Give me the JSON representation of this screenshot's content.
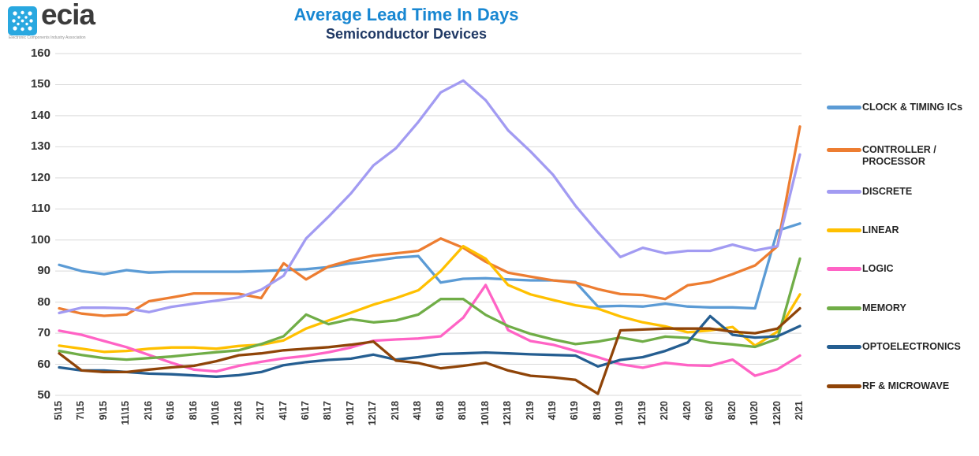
{
  "logo": {
    "brand": "ecia",
    "tagline": "Electronic Components Industry Association",
    "icon_color": "#29a8e0"
  },
  "header": {
    "title": "Average Lead Time In Days",
    "subtitle": "Semiconductor Devices",
    "title_color": "#1887d2",
    "subtitle_color": "#1f3864"
  },
  "chart_data": {
    "type": "line",
    "title": "Average Lead Time In Days",
    "subtitle": "Semiconductor Devices",
    "xlabel": "",
    "ylabel": "",
    "ylim": [
      50,
      160
    ],
    "yticks": [
      160,
      150,
      140,
      130,
      120,
      110,
      100,
      90,
      80,
      70,
      60,
      50
    ],
    "grid": true,
    "grid_color": "#d9d9d9",
    "legend_position": "right",
    "categories": [
      "5\\15",
      "7\\15",
      "9\\15",
      "11\\15",
      "2\\16",
      "6\\16",
      "8\\16",
      "10\\16",
      "12\\16",
      "2\\17",
      "4\\17",
      "6\\17",
      "8\\17",
      "10\\17",
      "12\\17",
      "2\\18",
      "4\\18",
      "6\\18",
      "8\\18",
      "10\\18",
      "12\\18",
      "2\\19",
      "4\\19",
      "6\\19",
      "8\\19",
      "10\\19",
      "12\\19",
      "2\\20",
      "4\\20",
      "6\\20",
      "8\\20",
      "10\\20",
      "12\\20",
      "2\\21"
    ],
    "series": [
      {
        "name": "CLOCK & TIMING ICs",
        "color": "#5b9bd5",
        "values": [
          92,
          90,
          89,
          90.3,
          89.5,
          89.8,
          89.8,
          89.8,
          89.8,
          90,
          90.3,
          90.6,
          91.3,
          92.5,
          93.3,
          94.3,
          94.8,
          86.3,
          87.5,
          87.7,
          87.3,
          87,
          87,
          86.5,
          78.6,
          78.8,
          78.6,
          79.5,
          78.6,
          78.3,
          78.3,
          78,
          103,
          105.3
        ]
      },
      {
        "name": "CONTROLLER / PROCESSOR",
        "color": "#ed7d31",
        "values": [
          78,
          76.3,
          75.6,
          76,
          80.3,
          81.5,
          82.8,
          82.8,
          82.7,
          81.3,
          92.5,
          87.3,
          91.5,
          93.5,
          95,
          95.7,
          96.5,
          100.5,
          97.5,
          93,
          89.5,
          88.2,
          87,
          86.3,
          84.2,
          82.6,
          82.3,
          81,
          85.4,
          86.5,
          89,
          91.8,
          98,
          136.5
        ]
      },
      {
        "name": "DISCRETE",
        "color": "#a29bf2",
        "values": [
          76.5,
          78.2,
          78.2,
          78,
          76.8,
          78.5,
          79.5,
          80.5,
          81.5,
          84,
          88.5,
          100.5,
          107.5,
          115,
          124,
          129.5,
          138,
          147.5,
          151.3,
          145,
          135.3,
          128.5,
          121,
          111,
          102.5,
          94.5,
          97.5,
          95.7,
          96.5,
          96.5,
          98.5,
          96.6,
          98,
          127.5
        ]
      },
      {
        "name": "LINEAR",
        "color": "#ffc000",
        "values": [
          66,
          65,
          64,
          64.3,
          65,
          65.4,
          65.4,
          65,
          65.9,
          66.3,
          67.7,
          71.5,
          74.1,
          76.6,
          79.2,
          81.3,
          83.8,
          90,
          98,
          94,
          85.5,
          82.5,
          80.7,
          79,
          77.9,
          75.4,
          73.5,
          72.2,
          70.3,
          70.9,
          72,
          66,
          70.5,
          82.5
        ]
      },
      {
        "name": "LOGIC",
        "color": "#ff63c5",
        "values": [
          70.8,
          69.5,
          67.5,
          65.5,
          63,
          60.5,
          58.3,
          57.7,
          59.5,
          60.8,
          61.9,
          62.7,
          63.9,
          65.4,
          67.6,
          68,
          68.3,
          69,
          75,
          85.5,
          71,
          67.5,
          66.3,
          64.3,
          62.3,
          60,
          58.9,
          60.5,
          59.7,
          59.5,
          61.5,
          56.3,
          58.4,
          62.8
        ]
      },
      {
        "name": "MEMORY",
        "color": "#70ad47",
        "values": [
          64.3,
          63,
          62,
          61.5,
          62,
          62.5,
          63.2,
          63.9,
          64.5,
          66.5,
          69,
          76,
          72.9,
          74.5,
          73.5,
          74.1,
          76,
          81,
          81,
          75.9,
          72.3,
          69.8,
          68,
          66.5,
          67.3,
          68.6,
          67.3,
          68.9,
          68.5,
          67,
          66.4,
          65.6,
          68.2,
          94
        ]
      },
      {
        "name": "OPTOELECTRONICS",
        "color": "#255e91",
        "values": [
          59,
          58,
          58,
          57.5,
          57,
          56.8,
          56.4,
          56,
          56.5,
          57.5,
          59.7,
          60.7,
          61.4,
          61.8,
          63.1,
          61.5,
          62.3,
          63.3,
          63.5,
          63.8,
          63.5,
          63.2,
          63,
          62.8,
          59.3,
          61.4,
          62.3,
          64.3,
          67,
          75.5,
          69.5,
          68.6,
          69,
          72.3
        ]
      },
      {
        "name": "RF & MICROWAVE",
        "color": "#8f4408",
        "values": [
          63.5,
          58,
          57.5,
          57.5,
          58.3,
          59,
          59.5,
          61,
          62.9,
          63.5,
          64.5,
          65,
          65.5,
          66.3,
          67.3,
          61.2,
          60.4,
          58.7,
          59.5,
          60.5,
          58,
          56.3,
          55.8,
          55,
          50.5,
          70.9,
          71.2,
          71.5,
          71.5,
          71.5,
          70.5,
          70,
          71.5,
          78
        ]
      }
    ]
  }
}
